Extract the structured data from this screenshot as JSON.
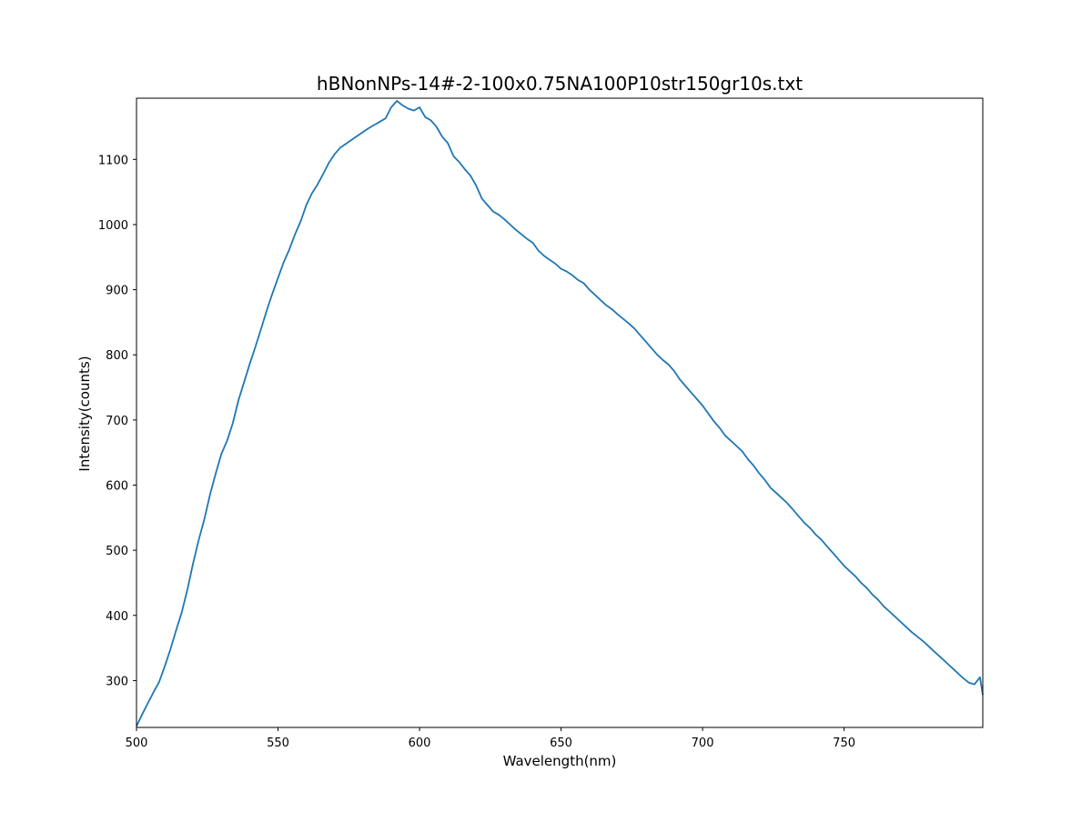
{
  "chart_data": {
    "type": "line",
    "title": "hBNonNPs-14#-2-100x0.75NA100P10str150gr10s.txt",
    "xlabel": "Wavelength(nm)",
    "ylabel": "Intensity(counts)",
    "xlim": [
      500,
      799
    ],
    "ylim": [
      228,
      1194
    ],
    "xticks": [
      500,
      550,
      600,
      650,
      700,
      750
    ],
    "yticks": [
      300,
      400,
      500,
      600,
      700,
      800,
      900,
      1000,
      1100
    ],
    "grid": false,
    "line_color": "#1f77b4",
    "series": [
      {
        "x": [
          500,
          502,
          504,
          506,
          508,
          510,
          512,
          514,
          516,
          518,
          520,
          522,
          524,
          526,
          528,
          530,
          532,
          534,
          536,
          538,
          540,
          542,
          544,
          546,
          548,
          550,
          552,
          554,
          556,
          558,
          560,
          562,
          564,
          566,
          568,
          570,
          572,
          574,
          576,
          578,
          580,
          582,
          584,
          586,
          588,
          590,
          592,
          594,
          596,
          598,
          600,
          602,
          604,
          606,
          608,
          610,
          612,
          614,
          616,
          618,
          620,
          622,
          624,
          626,
          628,
          630,
          632,
          634,
          636,
          638,
          640,
          642,
          644,
          646,
          648,
          650,
          652,
          654,
          656,
          658,
          660,
          662,
          664,
          666,
          668,
          670,
          672,
          674,
          676,
          678,
          680,
          682,
          684,
          686,
          688,
          690,
          692,
          694,
          696,
          698,
          700,
          702,
          704,
          706,
          708,
          710,
          712,
          714,
          716,
          718,
          720,
          722,
          724,
          726,
          728,
          730,
          732,
          734,
          736,
          738,
          740,
          742,
          744,
          746,
          748,
          750,
          752,
          754,
          756,
          758,
          760,
          762,
          764,
          766,
          768,
          770,
          772,
          774,
          776,
          778,
          780,
          782,
          784,
          786,
          788,
          790,
          792,
          794,
          796,
          798,
          799
        ],
        "y": [
          230,
          248,
          265,
          282,
          298,
          322,
          348,
          377,
          405,
          440,
          480,
          516,
          548,
          586,
          618,
          648,
          668,
          695,
          730,
          758,
          786,
          812,
          840,
          868,
          894,
          918,
          942,
          962,
          985,
          1005,
          1030,
          1048,
          1062,
          1078,
          1095,
          1108,
          1118,
          1124,
          1130,
          1136,
          1142,
          1148,
          1153,
          1158,
          1163,
          1180,
          1190,
          1183,
          1178,
          1175,
          1180,
          1165,
          1160,
          1150,
          1135,
          1125,
          1105,
          1096,
          1085,
          1075,
          1060,
          1040,
          1030,
          1020,
          1015,
          1008,
          1000,
          992,
          985,
          978,
          972,
          960,
          952,
          946,
          940,
          932,
          928,
          922,
          915,
          910,
          900,
          892,
          884,
          876,
          870,
          862,
          855,
          848,
          840,
          830,
          820,
          810,
          800,
          792,
          785,
          775,
          762,
          752,
          742,
          732,
          722,
          710,
          698,
          688,
          676,
          668,
          660,
          652,
          640,
          630,
          618,
          608,
          596,
          588,
          580,
          572,
          562,
          552,
          542,
          534,
          524,
          516,
          506,
          496,
          486,
          476,
          468,
          460,
          450,
          442,
          432,
          424,
          414,
          406,
          398,
          390,
          382,
          374,
          367,
          360,
          352,
          344,
          336,
          328,
          320,
          312,
          304,
          297,
          294,
          305,
          278
        ]
      }
    ]
  }
}
